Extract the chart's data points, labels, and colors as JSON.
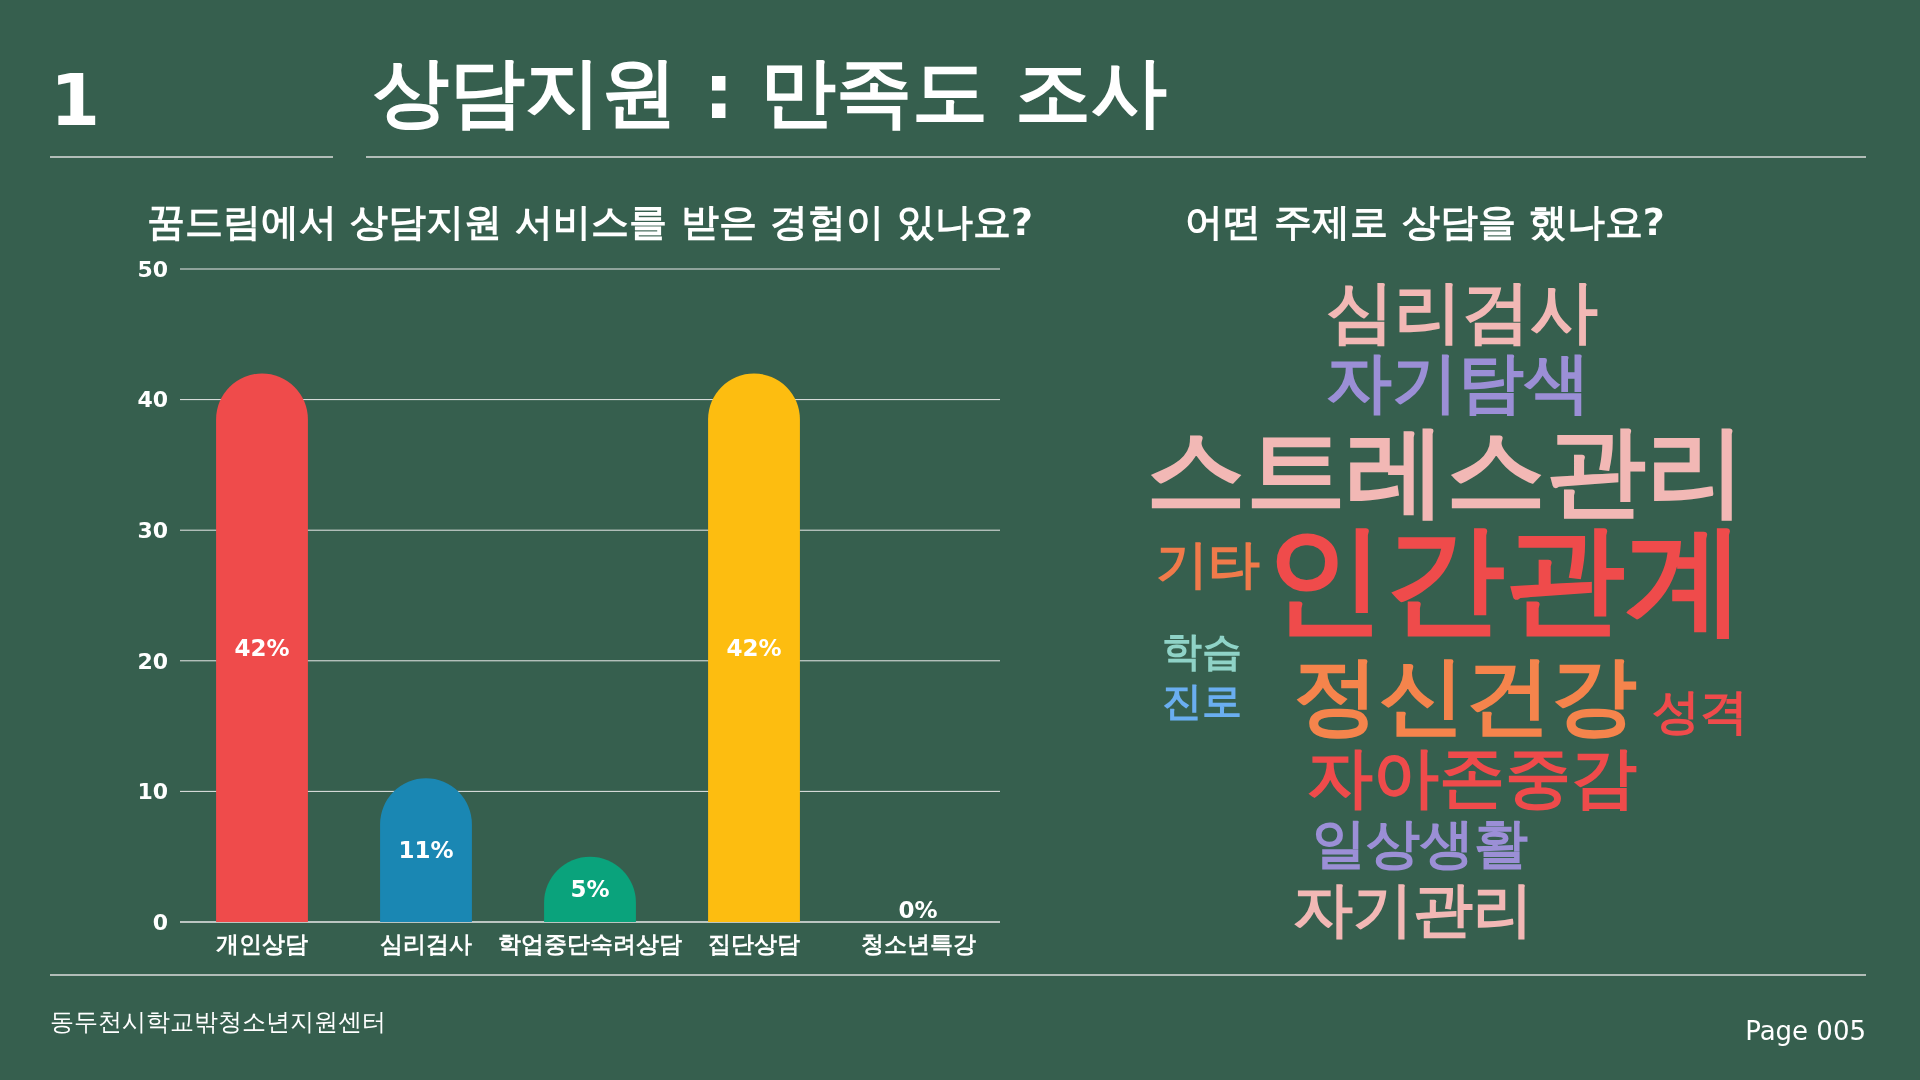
{
  "chart_data": [
    {
      "type": "bar",
      "title": "꿈드림에서 상담지원 서비스를 받은 경험이 있나요?",
      "categories": [
        "개인상담",
        "심리검사",
        "학업중단숙려상담",
        "집단상담",
        "청소년특강"
      ],
      "values": [
        42,
        11,
        5,
        42,
        0
      ],
      "colors": [
        "#ef4b4b",
        "#1a87b3",
        "#0aa37c",
        "#fdbd10",
        "#f6f6f6"
      ],
      "value_labels": [
        "42%",
        "11%",
        "5%",
        "42%",
        "0%"
      ],
      "ylim": [
        0,
        50
      ],
      "yticks": [
        0,
        10,
        20,
        30,
        40,
        50
      ],
      "grid": "y",
      "annotations": [
        "1",
        "상담지원 : 만족도 조사",
        "동두천시학교밖청소년지원센터",
        "Page 005"
      ]
    },
    {
      "type": "other",
      "title": "어떤 주제로 상담을 했나요?",
      "annotations": [
        "심리검사",
        "자기탐색",
        "스트레스관리",
        "기타",
        "인간관계",
        "학습",
        "진로",
        "정신건강",
        "성격",
        "자아존중감",
        "일상생활",
        "자기관리"
      ],
      "colors": [
        "#f2b8b5",
        "#9b8fd6",
        "#f2b8b5",
        "#f07a4a",
        "#ef4b4b",
        "#8fd3c7",
        "#6aaef0",
        "#f5844c",
        "#ef4b4b",
        "#ef4b4b",
        "#9b8fd6",
        "#f2b8b5"
      ]
    }
  ]
}
